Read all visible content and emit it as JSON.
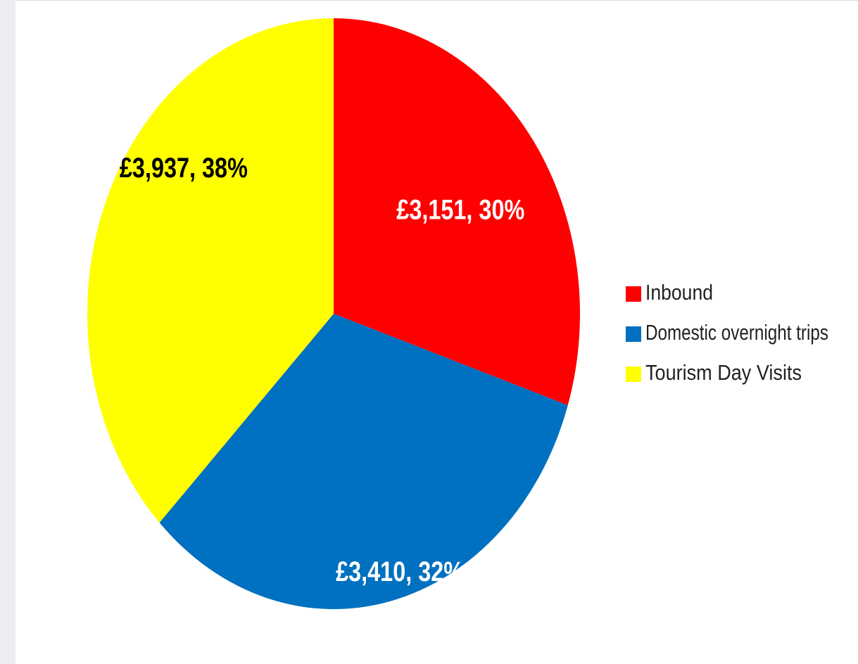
{
  "chart_data": {
    "type": "pie",
    "categories": [
      "Inbound",
      "Domestic overnight trips",
      "Tourism Day Visits"
    ],
    "values": [
      3151,
      3410,
      3937
    ],
    "percentages": [
      30,
      32,
      38
    ],
    "data_labels": [
      "£3,151, 30%",
      "£3,410, 32%",
      "£3,937, 38%"
    ],
    "colors": [
      "#ff0000",
      "#0070c0",
      "#ffff00"
    ],
    "label_colors": [
      "#ffffff",
      "#ffffff",
      "#000000"
    ],
    "legend_position": "right",
    "start": "12 o'clock",
    "direction": "clockwise"
  }
}
